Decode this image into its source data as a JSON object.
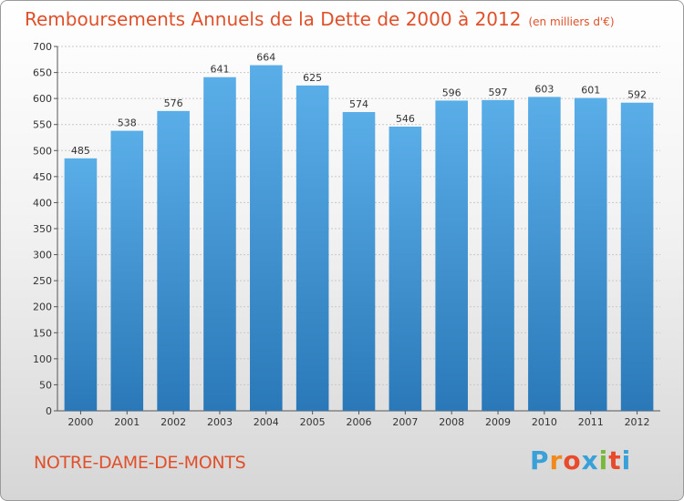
{
  "title": "Remboursements Annuels de la Dette de 2000 à 2012",
  "unit": "(en milliers d'€)",
  "commune": "NOTRE-DAME-DE-MONTS",
  "logo": {
    "letters": [
      "P",
      "r",
      "o",
      "x",
      "i",
      "t",
      "i"
    ],
    "colors": [
      "#3aa0d8",
      "#f08a1c",
      "#e84a2a",
      "#3aa0d8",
      "#7ab83a",
      "#e84a2a",
      "#3aa0d8"
    ]
  },
  "chart_data": {
    "type": "bar",
    "categories": [
      "2000",
      "2001",
      "2002",
      "2003",
      "2004",
      "2005",
      "2006",
      "2007",
      "2008",
      "2009",
      "2010",
      "2011",
      "2012"
    ],
    "values": [
      485,
      538,
      576,
      641,
      664,
      625,
      574,
      546,
      596,
      597,
      603,
      601,
      592
    ],
    "ylim": [
      0,
      700
    ],
    "yticks": [
      0,
      50,
      100,
      150,
      200,
      250,
      300,
      350,
      400,
      450,
      500,
      550,
      600,
      650,
      700
    ],
    "grid": true,
    "bar_color_top": "#5aaee8",
    "bar_color_bottom": "#2a78b8"
  }
}
